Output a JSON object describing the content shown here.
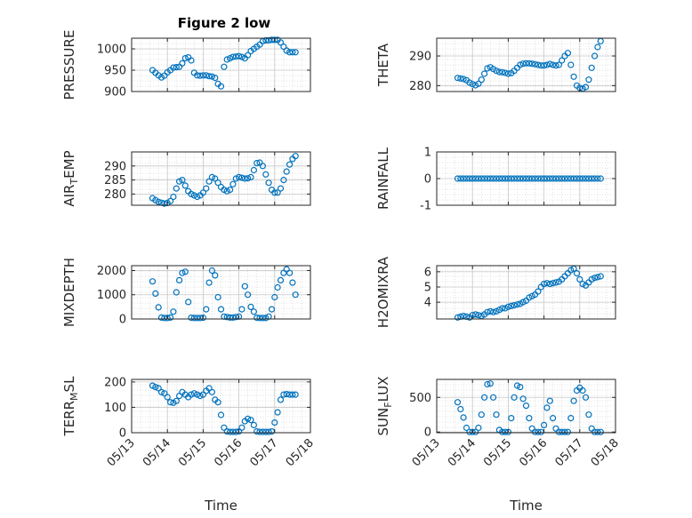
{
  "figure": {
    "title": "Figure 2 low",
    "marker_color": "#0072BD"
  },
  "chart_data": [
    {
      "type": "scatter",
      "id": "pressure",
      "ylabel": "PRESSURE",
      "ylim": [
        900,
        1025
      ],
      "yticks": [
        900,
        950,
        1000
      ],
      "ytick_labels": [
        "900",
        "950",
        "1000"
      ],
      "xlim": [
        "05/13",
        "05/18"
      ],
      "xlabel": "",
      "grid": true,
      "x": [
        "05/13 14:00",
        "05/13 16:00",
        "05/13 18:00",
        "05/13 20:00",
        "05/13 22:00",
        "05/14 00:00",
        "05/14 02:00",
        "05/14 04:00",
        "05/14 06:00",
        "05/14 08:00",
        "05/14 10:00",
        "05/14 12:00",
        "05/14 14:00",
        "05/14 16:00",
        "05/14 18:00",
        "05/14 20:00",
        "05/14 22:00",
        "05/15 00:00",
        "05/15 02:00",
        "05/15 04:00",
        "05/15 06:00",
        "05/15 08:00",
        "05/15 10:00",
        "05/15 12:00",
        "05/15 14:00",
        "05/15 16:00",
        "05/15 18:00",
        "05/15 20:00",
        "05/15 22:00",
        "05/16 00:00",
        "05/16 02:00",
        "05/16 04:00",
        "05/16 06:00",
        "05/16 08:00",
        "05/16 10:00",
        "05/16 12:00",
        "05/16 14:00",
        "05/16 16:00",
        "05/16 18:00",
        "05/16 20:00",
        "05/16 22:00",
        "05/17 00:00",
        "05/17 02:00",
        "05/17 04:00",
        "05/17 06:00",
        "05/17 08:00",
        "05/17 10:00",
        "05/17 12:00",
        "05/17 14:00"
      ],
      "y": [
        950,
        944,
        938,
        933,
        937,
        945,
        950,
        956,
        957,
        958,
        966,
        978,
        980,
        973,
        944,
        938,
        937,
        938,
        938,
        936,
        935,
        932,
        918,
        912,
        958,
        975,
        978,
        981,
        982,
        983,
        981,
        978,
        985,
        995,
        1000,
        1005,
        1010,
        1018,
        1020,
        1020,
        1021,
        1021,
        1021,
        1015,
        1005,
        996,
        992,
        992,
        992
      ]
    },
    {
      "type": "scatter",
      "id": "theta",
      "ylabel": "THETA",
      "ylim": [
        278,
        296
      ],
      "yticks": [
        280,
        290
      ],
      "ytick_labels": [
        "280",
        "290"
      ],
      "xlim": [
        "05/13",
        "05/18"
      ],
      "xlabel": "",
      "grid": true,
      "x": [
        "05/13 14:00",
        "05/13 16:00",
        "05/13 18:00",
        "05/13 20:00",
        "05/13 22:00",
        "05/14 00:00",
        "05/14 02:00",
        "05/14 04:00",
        "05/14 06:00",
        "05/14 08:00",
        "05/14 10:00",
        "05/14 12:00",
        "05/14 14:00",
        "05/14 16:00",
        "05/14 18:00",
        "05/14 20:00",
        "05/14 22:00",
        "05/15 00:00",
        "05/15 02:00",
        "05/15 04:00",
        "05/15 06:00",
        "05/15 08:00",
        "05/15 10:00",
        "05/15 12:00",
        "05/15 14:00",
        "05/15 16:00",
        "05/15 18:00",
        "05/15 20:00",
        "05/15 22:00",
        "05/16 00:00",
        "05/16 02:00",
        "05/16 04:00",
        "05/16 06:00",
        "05/16 08:00",
        "05/16 10:00",
        "05/16 12:00",
        "05/16 14:00",
        "05/16 16:00",
        "05/16 18:00",
        "05/16 20:00",
        "05/16 22:00",
        "05/17 00:00",
        "05/17 02:00",
        "05/17 04:00",
        "05/17 06:00",
        "05/17 08:00",
        "05/17 10:00",
        "05/17 12:00",
        "05/17 14:00"
      ],
      "y": [
        282.6,
        282.4,
        282.2,
        281.8,
        281.0,
        280.5,
        280.1,
        280.6,
        282.0,
        284.0,
        285.8,
        286.2,
        285.6,
        285.0,
        284.6,
        284.5,
        284.3,
        284.0,
        284.2,
        285.0,
        286.0,
        287.0,
        287.4,
        287.5,
        287.5,
        287.4,
        287.2,
        287.0,
        286.8,
        286.8,
        287.0,
        287.3,
        287.0,
        286.8,
        287.0,
        288.5,
        290.0,
        291.0,
        287.0,
        283.0,
        280.0,
        279.2,
        279.0,
        279.5,
        282.0,
        286.0,
        290.0,
        293.0,
        295.0
      ]
    },
    {
      "type": "scatter",
      "id": "airtemp",
      "ylabel": "AIR_TEMP",
      "ylabel_main": "AIR",
      "ylabel_sub": "T",
      "ylabel_tail": "EMP",
      "ylim": [
        276,
        295
      ],
      "yticks": [
        280,
        285,
        290
      ],
      "ytick_labels": [
        "280",
        "285",
        "290"
      ],
      "xlim": [
        "05/13",
        "05/18"
      ],
      "xlabel": "",
      "grid": true,
      "x": [
        "05/13 14:00",
        "05/13 16:00",
        "05/13 18:00",
        "05/13 20:00",
        "05/13 22:00",
        "05/14 00:00",
        "05/14 02:00",
        "05/14 04:00",
        "05/14 06:00",
        "05/14 08:00",
        "05/14 10:00",
        "05/14 12:00",
        "05/14 14:00",
        "05/14 16:00",
        "05/14 18:00",
        "05/14 20:00",
        "05/14 22:00",
        "05/15 00:00",
        "05/15 02:00",
        "05/15 04:00",
        "05/15 06:00",
        "05/15 08:00",
        "05/15 10:00",
        "05/15 12:00",
        "05/15 14:00",
        "05/15 16:00",
        "05/15 18:00",
        "05/15 20:00",
        "05/15 22:00",
        "05/16 00:00",
        "05/16 02:00",
        "05/16 04:00",
        "05/16 06:00",
        "05/16 08:00",
        "05/16 10:00",
        "05/16 12:00",
        "05/16 14:00",
        "05/16 16:00",
        "05/16 18:00",
        "05/16 20:00",
        "05/16 22:00",
        "05/17 00:00",
        "05/17 02:00",
        "05/17 04:00",
        "05/17 06:00",
        "05/17 08:00",
        "05/17 10:00",
        "05/17 12:00",
        "05/17 14:00"
      ],
      "y": [
        278.5,
        277.8,
        277.2,
        276.9,
        276.6,
        276.8,
        277.5,
        279.0,
        282.0,
        284.5,
        285.0,
        283.0,
        281.0,
        280.0,
        279.5,
        279.0,
        279.5,
        280.5,
        282.0,
        284.5,
        286.0,
        285.5,
        284.0,
        282.5,
        281.5,
        281.0,
        281.5,
        283.5,
        285.5,
        286.0,
        285.8,
        285.5,
        285.6,
        286.0,
        288.5,
        291.0,
        291.2,
        290.0,
        287.0,
        284.0,
        281.5,
        280.5,
        280.5,
        282.0,
        285.0,
        288.0,
        290.5,
        292.5,
        293.5
      ]
    },
    {
      "type": "scatter",
      "id": "rainfall",
      "ylabel": "RAINFALL",
      "ylim": [
        -1,
        1
      ],
      "yticks": [
        -1,
        0,
        1
      ],
      "ytick_labels": [
        "-1",
        "0",
        "1"
      ],
      "xlim": [
        "05/13",
        "05/18"
      ],
      "xlabel": "",
      "grid": true,
      "x_start": "05/13 14:00",
      "x_end": "05/17 14:00",
      "n_points": 49,
      "constant_value": 0
    },
    {
      "type": "scatter",
      "id": "mixdepth",
      "ylabel": "MIXDEPTH",
      "ylim": [
        0,
        2200
      ],
      "yticks": [
        0,
        1000,
        2000
      ],
      "ytick_labels": [
        "0",
        "1000",
        "2000"
      ],
      "xlim": [
        "05/13",
        "05/18"
      ],
      "xlabel": "",
      "grid": true,
      "x": [
        "05/13 14:00",
        "05/13 16:00",
        "05/13 18:00",
        "05/13 20:00",
        "05/13 22:00",
        "05/14 00:00",
        "05/14 02:00",
        "05/14 04:00",
        "05/14 06:00",
        "05/14 08:00",
        "05/14 10:00",
        "05/14 12:00",
        "05/14 14:00",
        "05/14 16:00",
        "05/14 18:00",
        "05/14 20:00",
        "05/14 22:00",
        "05/15 00:00",
        "05/15 02:00",
        "05/15 04:00",
        "05/15 06:00",
        "05/15 08:00",
        "05/15 10:00",
        "05/15 12:00",
        "05/15 14:00",
        "05/15 16:00",
        "05/15 18:00",
        "05/15 20:00",
        "05/15 22:00",
        "05/16 00:00",
        "05/16 02:00",
        "05/16 04:00",
        "05/16 06:00",
        "05/16 08:00",
        "05/16 10:00",
        "05/16 12:00",
        "05/16 14:00",
        "05/16 16:00",
        "05/16 18:00",
        "05/16 20:00",
        "05/16 22:00",
        "05/17 00:00",
        "05/17 02:00",
        "05/17 04:00",
        "05/17 06:00",
        "05/17 08:00",
        "05/17 10:00",
        "05/17 12:00",
        "05/17 14:00"
      ],
      "y": [
        1550,
        1050,
        480,
        60,
        40,
        40,
        60,
        300,
        1100,
        1600,
        1900,
        1950,
        700,
        50,
        40,
        40,
        40,
        50,
        400,
        1500,
        2000,
        1800,
        900,
        400,
        100,
        80,
        60,
        60,
        80,
        100,
        400,
        1350,
        1000,
        500,
        300,
        50,
        40,
        40,
        40,
        100,
        400,
        900,
        1300,
        1600,
        1900,
        2050,
        1900,
        1500,
        1000
      ]
    },
    {
      "type": "scatter",
      "id": "h2omixra",
      "ylabel": "H2OMIXRA",
      "ylim": [
        2.9,
        6.4
      ],
      "yticks": [
        4,
        5,
        6
      ],
      "ytick_labels": [
        "4",
        "5",
        "6"
      ],
      "xlim": [
        "05/13",
        "05/18"
      ],
      "xlabel": "",
      "grid": true,
      "x": [
        "05/13 14:00",
        "05/13 16:00",
        "05/13 18:00",
        "05/13 20:00",
        "05/13 22:00",
        "05/14 00:00",
        "05/14 02:00",
        "05/14 04:00",
        "05/14 06:00",
        "05/14 08:00",
        "05/14 10:00",
        "05/14 12:00",
        "05/14 14:00",
        "05/14 16:00",
        "05/14 18:00",
        "05/14 20:00",
        "05/14 22:00",
        "05/15 00:00",
        "05/15 02:00",
        "05/15 04:00",
        "05/15 06:00",
        "05/15 08:00",
        "05/15 10:00",
        "05/15 12:00",
        "05/15 14:00",
        "05/15 16:00",
        "05/15 18:00",
        "05/15 20:00",
        "05/15 22:00",
        "05/16 00:00",
        "05/16 02:00",
        "05/16 04:00",
        "05/16 06:00",
        "05/16 08:00",
        "05/16 10:00",
        "05/16 12:00",
        "05/16 14:00",
        "05/16 16:00",
        "05/16 18:00",
        "05/16 20:00",
        "05/16 22:00",
        "05/17 00:00",
        "05/17 02:00",
        "05/17 04:00",
        "05/17 06:00",
        "05/17 08:00",
        "05/17 10:00",
        "05/17 12:00",
        "05/17 14:00"
      ],
      "y": [
        3.0,
        3.05,
        3.1,
        3.05,
        3.0,
        3.15,
        3.2,
        3.15,
        3.1,
        3.2,
        3.35,
        3.4,
        3.35,
        3.4,
        3.5,
        3.6,
        3.6,
        3.7,
        3.75,
        3.8,
        3.85,
        3.9,
        4.0,
        4.1,
        4.3,
        4.4,
        4.5,
        4.7,
        5.0,
        5.2,
        5.25,
        5.2,
        5.25,
        5.3,
        5.35,
        5.5,
        5.7,
        5.9,
        6.1,
        6.2,
        5.9,
        5.5,
        5.2,
        5.1,
        5.3,
        5.5,
        5.6,
        5.65,
        5.7
      ]
    },
    {
      "type": "scatter",
      "id": "terrmsl",
      "ylabel": "TERR_MSL",
      "ylabel_main": "TERR",
      "ylabel_sub": "M",
      "ylabel_tail": "SL",
      "ylim": [
        0,
        210
      ],
      "yticks": [
        0,
        100,
        200
      ],
      "ytick_labels": [
        "0",
        "100",
        "200"
      ],
      "xlim": [
        "05/13",
        "05/18"
      ],
      "xlabel": "Time",
      "grid": true,
      "xticks": [
        "05/13",
        "05/14",
        "05/15",
        "05/16",
        "05/17",
        "05/18"
      ],
      "x": [
        "05/13 14:00",
        "05/13 16:00",
        "05/13 18:00",
        "05/13 20:00",
        "05/13 22:00",
        "05/14 00:00",
        "05/14 02:00",
        "05/14 04:00",
        "05/14 06:00",
        "05/14 08:00",
        "05/14 10:00",
        "05/14 12:00",
        "05/14 14:00",
        "05/14 16:00",
        "05/14 18:00",
        "05/14 20:00",
        "05/14 22:00",
        "05/15 00:00",
        "05/15 02:00",
        "05/15 04:00",
        "05/15 06:00",
        "05/15 08:00",
        "05/15 10:00",
        "05/15 12:00",
        "05/15 14:00",
        "05/15 16:00",
        "05/15 18:00",
        "05/15 20:00",
        "05/15 22:00",
        "05/16 00:00",
        "05/16 02:00",
        "05/16 04:00",
        "05/16 06:00",
        "05/16 08:00",
        "05/16 10:00",
        "05/16 12:00",
        "05/16 14:00",
        "05/16 16:00",
        "05/16 18:00",
        "05/16 20:00",
        "05/16 22:00",
        "05/17 00:00",
        "05/17 02:00",
        "05/17 04:00",
        "05/17 06:00",
        "05/17 08:00",
        "05/17 10:00",
        "05/17 12:00",
        "05/17 14:00"
      ],
      "y": [
        185,
        180,
        175,
        160,
        155,
        140,
        120,
        118,
        125,
        145,
        160,
        150,
        140,
        150,
        155,
        150,
        145,
        150,
        165,
        175,
        160,
        130,
        120,
        70,
        20,
        5,
        3,
        3,
        3,
        5,
        20,
        45,
        55,
        50,
        30,
        5,
        3,
        3,
        3,
        3,
        5,
        40,
        80,
        130,
        150,
        152,
        150,
        150,
        150
      ]
    },
    {
      "type": "scatter",
      "id": "sunflux",
      "ylabel": "SUN_FLUX",
      "ylabel_main": "SUN",
      "ylabel_sub": "F",
      "ylabel_tail": "LUX",
      "ylim": [
        -10,
        760
      ],
      "yticks": [
        0,
        500
      ],
      "ytick_labels": [
        "0",
        "500"
      ],
      "xlim": [
        "05/13",
        "05/18"
      ],
      "xlabel": "Time",
      "grid": true,
      "xticks": [
        "05/13",
        "05/14",
        "05/15",
        "05/16",
        "05/17",
        "05/18"
      ],
      "x": [
        "05/13 14:00",
        "05/13 16:00",
        "05/13 18:00",
        "05/13 20:00",
        "05/13 22:00",
        "05/14 00:00",
        "05/14 02:00",
        "05/14 04:00",
        "05/14 06:00",
        "05/14 08:00",
        "05/14 10:00",
        "05/14 12:00",
        "05/14 14:00",
        "05/14 16:00",
        "05/14 18:00",
        "05/14 20:00",
        "05/14 22:00",
        "05/15 00:00",
        "05/15 02:00",
        "05/15 04:00",
        "05/15 06:00",
        "05/15 08:00",
        "05/15 10:00",
        "05/15 12:00",
        "05/15 14:00",
        "05/15 16:00",
        "05/15 18:00",
        "05/15 20:00",
        "05/15 22:00",
        "05/16 00:00",
        "05/16 02:00",
        "05/16 04:00",
        "05/16 06:00",
        "05/16 08:00",
        "05/16 10:00",
        "05/16 12:00",
        "05/16 14:00",
        "05/16 16:00",
        "05/16 18:00",
        "05/16 20:00",
        "05/16 22:00",
        "05/17 00:00",
        "05/17 02:00",
        "05/17 04:00",
        "05/17 06:00",
        "05/17 08:00",
        "05/17 10:00",
        "05/17 12:00",
        "05/17 14:00"
      ],
      "y": [
        430,
        330,
        210,
        60,
        0,
        0,
        0,
        60,
        250,
        500,
        690,
        700,
        500,
        250,
        30,
        0,
        0,
        0,
        200,
        500,
        670,
        650,
        480,
        380,
        200,
        50,
        0,
        0,
        0,
        100,
        350,
        450,
        200,
        50,
        0,
        0,
        0,
        0,
        200,
        450,
        600,
        640,
        600,
        500,
        250,
        50,
        0,
        0,
        0
      ]
    }
  ]
}
